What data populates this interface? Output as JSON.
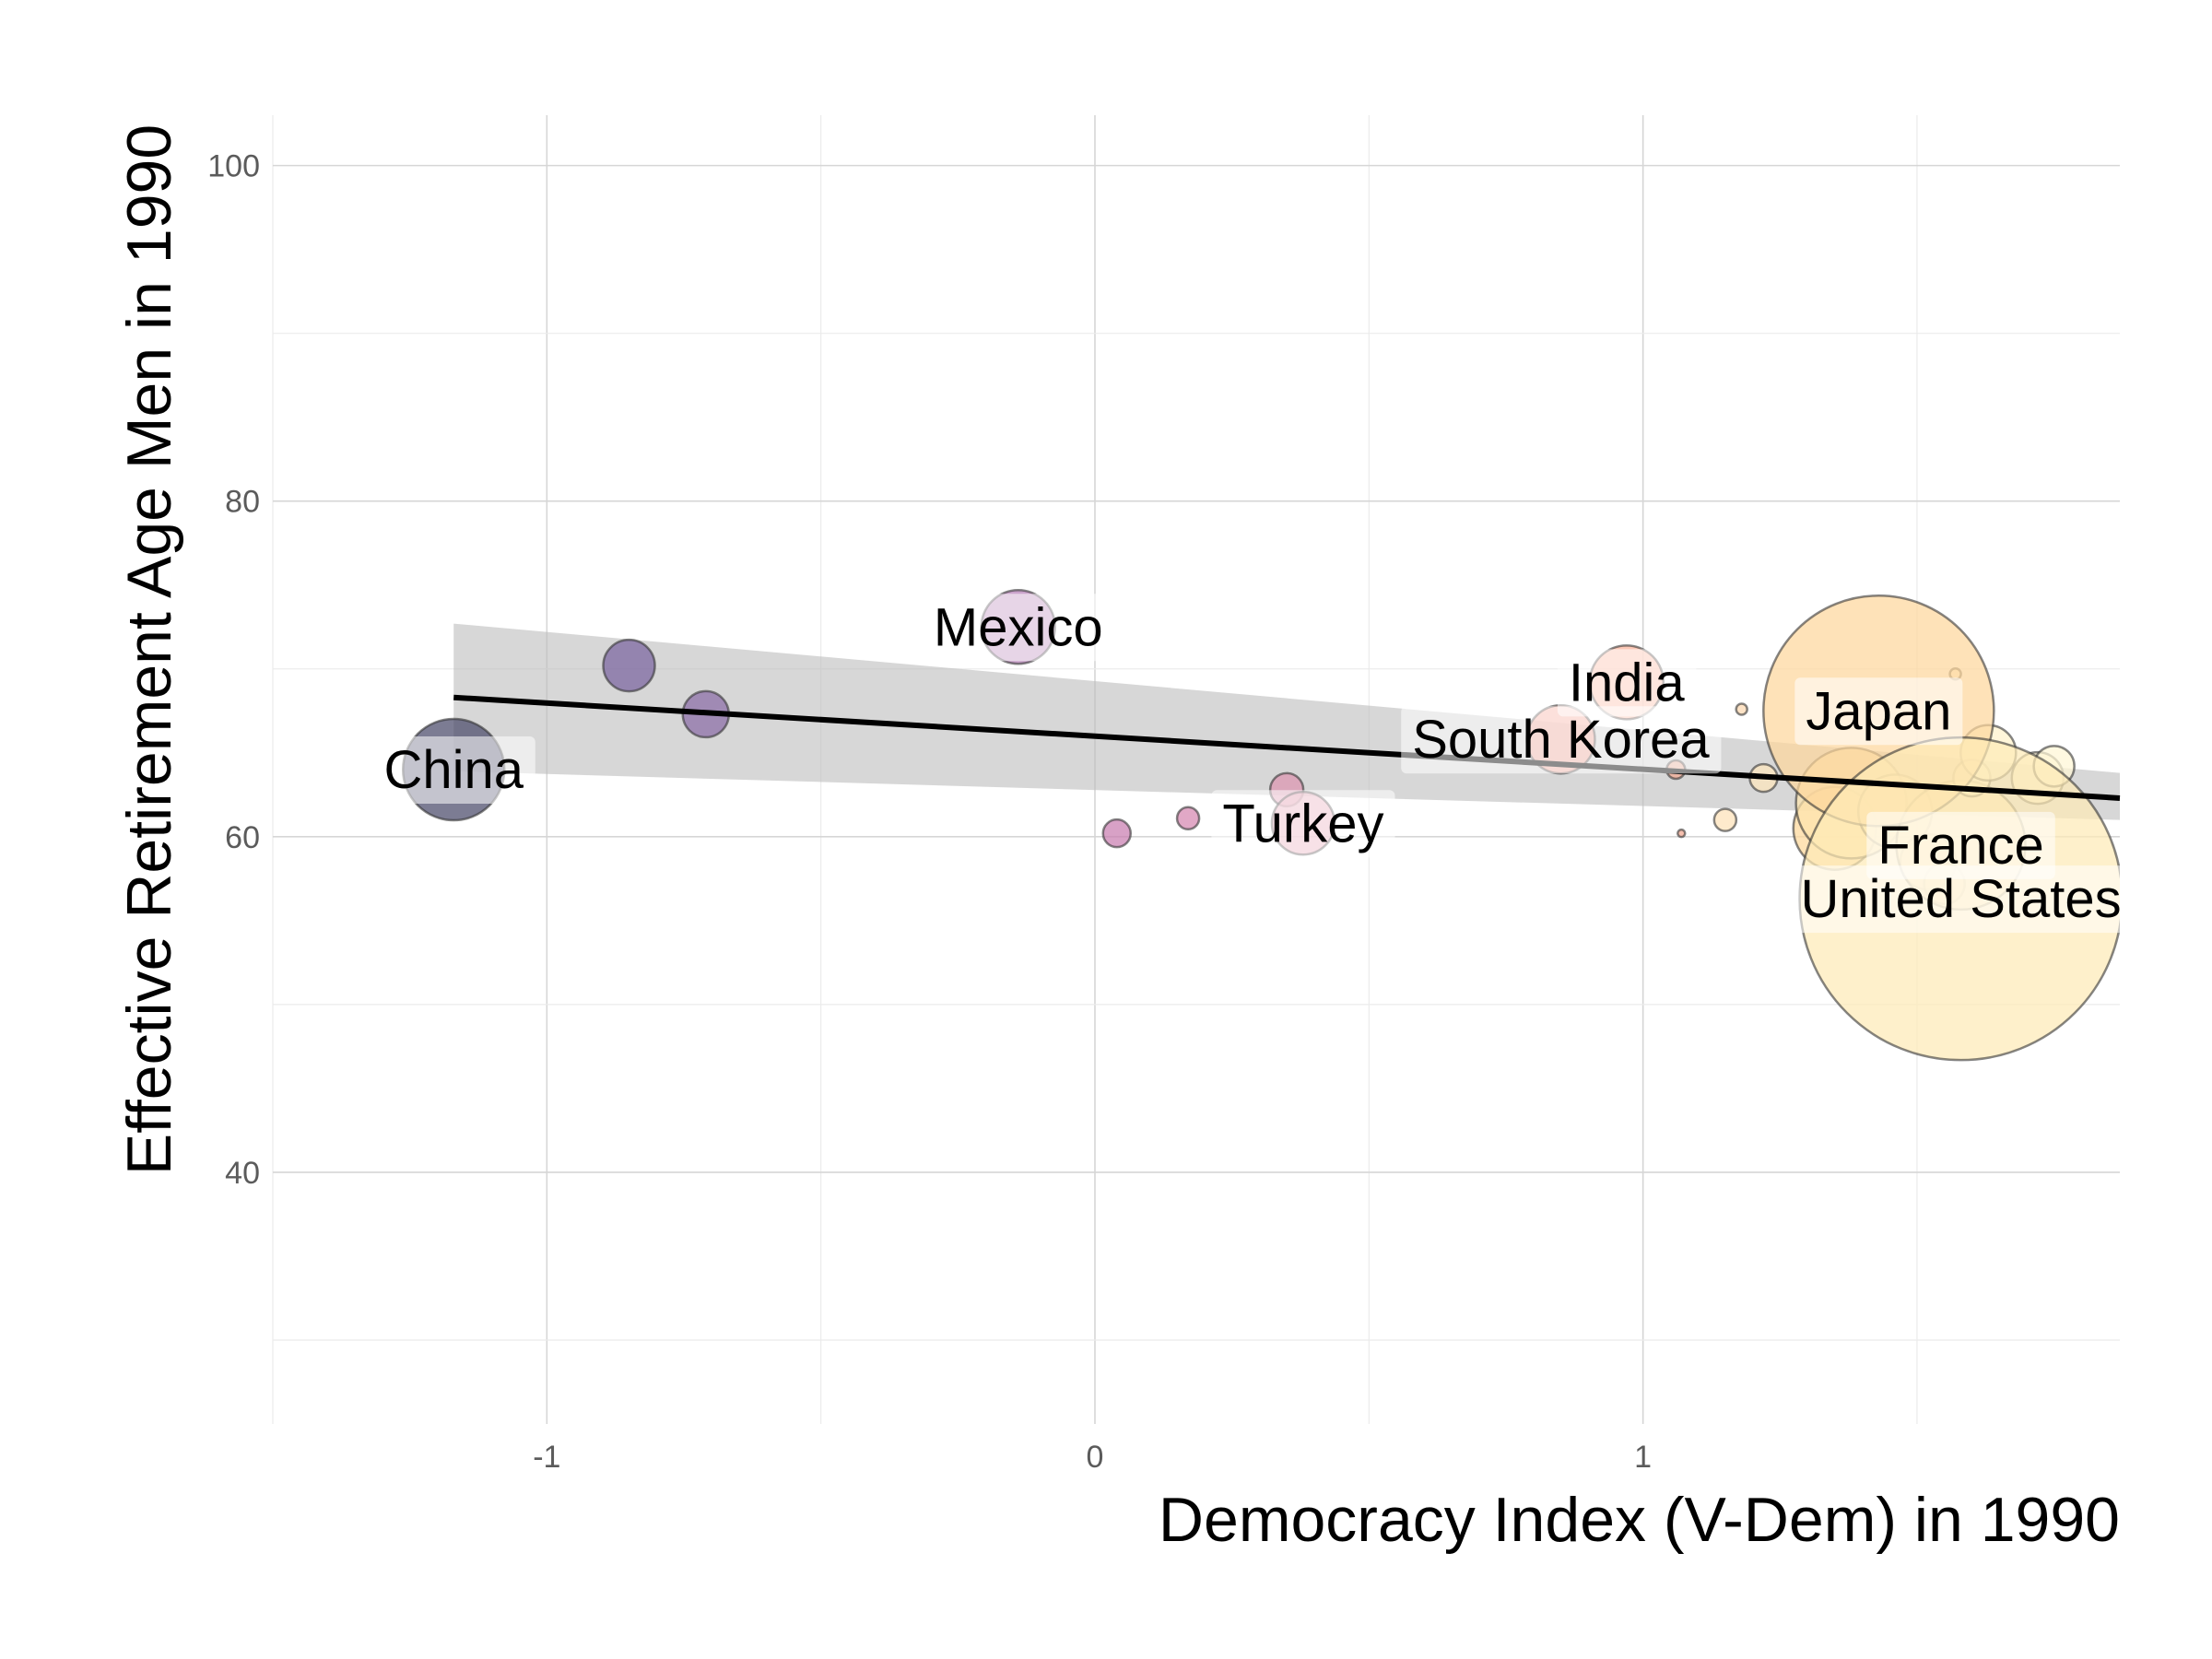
{
  "chart_data": {
    "type": "scatter",
    "title": "",
    "xlabel": "Democracy Index (V-Dem) in 1990",
    "ylabel": "Effective Retirement Age Men in 1990",
    "xlim": [
      -1.5,
      1.87
    ],
    "ylim": [
      25,
      103
    ],
    "x_ticks": [
      -1,
      0,
      1
    ],
    "x_tick_labels": [
      "-1",
      "0",
      "1"
    ],
    "y_ticks": [
      40,
      60,
      80,
      100
    ],
    "y_tick_labels": [
      "40",
      "60",
      "80",
      "100"
    ],
    "grid": true,
    "legend": "none",
    "trend_line": {
      "x": [
        -1.17,
        1.87
      ],
      "y": [
        68.3,
        62.3
      ],
      "ci_upper": [
        72.7,
        63.8
      ],
      "ci_lower": [
        63.9,
        61.0
      ],
      "color": "#000000",
      "ci_color": "#bdbdbd"
    },
    "points": [
      {
        "x": -1.17,
        "y": 64.0,
        "size": 55,
        "color": "#4a4a6a",
        "label": "China"
      },
      {
        "x": -0.85,
        "y": 70.2,
        "size": 28,
        "color": "#7a64a0"
      },
      {
        "x": -0.71,
        "y": 67.3,
        "size": 25,
        "color": "#8a6ca6"
      },
      {
        "x": -0.14,
        "y": 72.5,
        "size": 40,
        "color": "#b57fb7",
        "label": "Mexico"
      },
      {
        "x": 0.04,
        "y": 60.2,
        "size": 15,
        "color": "#c97db0"
      },
      {
        "x": 0.17,
        "y": 61.1,
        "size": 12,
        "color": "#d687b0"
      },
      {
        "x": 0.35,
        "y": 62.8,
        "size": 18,
        "color": "#dc94b0"
      },
      {
        "x": 0.38,
        "y": 60.8,
        "size": 34,
        "color": "#e6a3b6",
        "label": "Turkey"
      },
      {
        "x": 0.85,
        "y": 65.8,
        "size": 37,
        "color": "#f59f90",
        "label": "South Korea"
      },
      {
        "x": 0.97,
        "y": 69.2,
        "size": 40,
        "color": "#fbb39a",
        "label": "India"
      },
      {
        "x": 1.06,
        "y": 64.0,
        "size": 10,
        "color": "#f0a890"
      },
      {
        "x": 1.07,
        "y": 60.2,
        "size": 4,
        "color": "#f3a890"
      },
      {
        "x": 1.18,
        "y": 67.6,
        "size": 6,
        "color": "#fcd8b0"
      },
      {
        "x": 1.15,
        "y": 61.0,
        "size": 12,
        "color": "#fde2b8"
      },
      {
        "x": 1.22,
        "y": 63.5,
        "size": 15,
        "color": "#fde6bc"
      },
      {
        "x": 1.35,
        "y": 60.5,
        "size": 45,
        "color": "#fdd89a"
      },
      {
        "x": 1.38,
        "y": 62.0,
        "size": 60,
        "color": "#fde4ad"
      },
      {
        "x": 1.46,
        "y": 61.5,
        "size": 40,
        "color": "#fee9ba"
      },
      {
        "x": 1.52,
        "y": 58.5,
        "size": 30,
        "color": "#fde3b0"
      },
      {
        "x": 1.55,
        "y": 57.2,
        "size": 22,
        "color": "#fee6b6"
      },
      {
        "x": 1.58,
        "y": 59.5,
        "size": 70,
        "color": "#fee5b4",
        "label": "France"
      },
      {
        "x": 1.6,
        "y": 63.5,
        "size": 20,
        "color": "#fff0c8"
      },
      {
        "x": 1.63,
        "y": 65.0,
        "size": 30,
        "color": "#fff2cc"
      },
      {
        "x": 1.72,
        "y": 63.5,
        "size": 28,
        "color": "#fff4d0"
      },
      {
        "x": 1.75,
        "y": 64.2,
        "size": 22,
        "color": "#fff6d6"
      },
      {
        "x": 1.57,
        "y": 69.7,
        "size": 6,
        "color": "#fff1cc"
      },
      {
        "x": 1.43,
        "y": 67.5,
        "size": 125,
        "color": "#fdd79c",
        "label": "Japan"
      },
      {
        "x": 1.58,
        "y": 56.3,
        "size": 175,
        "color": "#feeab7",
        "label": "United States"
      }
    ]
  }
}
